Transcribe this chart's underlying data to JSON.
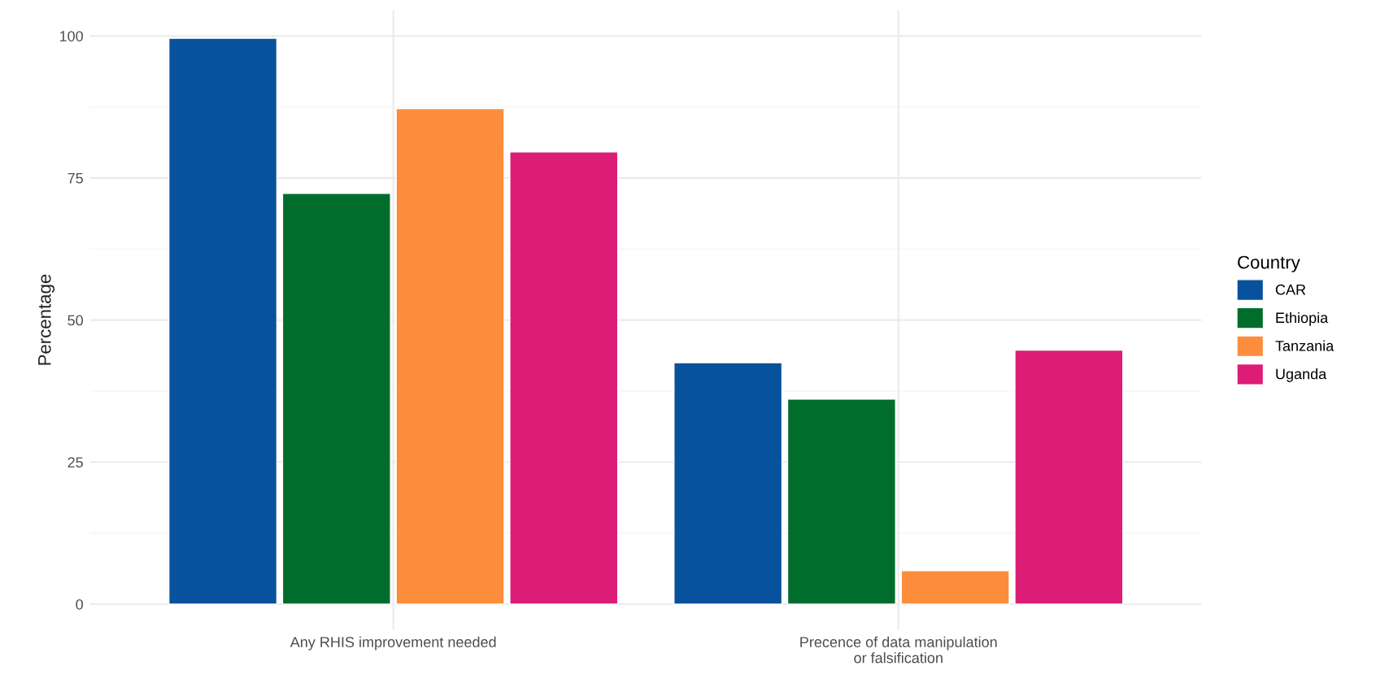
{
  "chart_data": {
    "type": "bar",
    "ylabel": "Percentage",
    "legend_title": "Country",
    "categories": [
      "Any RHIS improvement needed",
      "Precence of data manipulation\nor falsification"
    ],
    "series": [
      {
        "name": "CAR",
        "color": "#08519c",
        "values": [
          99.6,
          42.5
        ]
      },
      {
        "name": "Ethiopia",
        "color": "#006d2c",
        "values": [
          72.3,
          36.1
        ]
      },
      {
        "name": "Tanzania",
        "color": "#fd8d3c",
        "values": [
          87.2,
          5.9
        ]
      },
      {
        "name": "Uganda",
        "color": "#dd1c77",
        "values": [
          79.6,
          44.7
        ]
      }
    ],
    "ylim": [
      -4.5,
      104.5
    ],
    "yticks": [
      0,
      25,
      50,
      75,
      100
    ],
    "grid": true,
    "legend": "right"
  }
}
